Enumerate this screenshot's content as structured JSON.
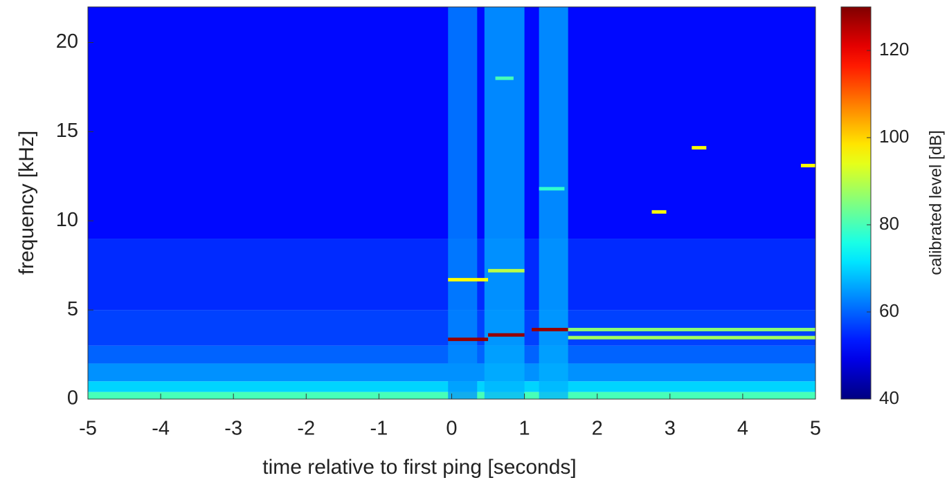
{
  "chart_data": {
    "type": "spectrogram",
    "xlabel": "time relative to first ping [seconds]",
    "ylabel": "frequency [kHz]",
    "colorbar_label": "calibrated level [dB]",
    "xlim": [
      -5,
      5
    ],
    "xticks": [
      -5,
      -4,
      -3,
      -2,
      -1,
      0,
      1,
      2,
      3,
      4,
      5
    ],
    "ylim": [
      0,
      22
    ],
    "yticks": [
      0,
      5,
      10,
      15,
      20
    ],
    "clim": [
      40,
      130
    ],
    "cticks": [
      40,
      60,
      80,
      100,
      120
    ],
    "colormap": "jet",
    "background": {
      "frequencies": [
        0,
        0.4,
        1,
        2,
        3,
        5,
        9,
        22
      ],
      "levels": [
        80,
        70,
        64,
        60,
        57,
        55,
        52
      ]
    },
    "columns": [
      {
        "x0": -0.05,
        "x1": 0.35,
        "level": 64
      },
      {
        "x0": 0.45,
        "x1": 1.0,
        "level": 67
      },
      {
        "x0": 1.2,
        "x1": 1.6,
        "level": 67
      }
    ],
    "tones": [
      {
        "x0": -0.05,
        "x1": 0.5,
        "frequency": 3.35,
        "level": 128
      },
      {
        "x0": 0.5,
        "x1": 1.0,
        "frequency": 3.6,
        "level": 128
      },
      {
        "x0": 1.1,
        "x1": 1.6,
        "frequency": 3.9,
        "level": 128
      },
      {
        "x0": 1.6,
        "x1": 5,
        "frequency": 3.9,
        "level": 86
      },
      {
        "x0": 1.6,
        "x1": 5,
        "frequency": 3.45,
        "level": 88
      },
      {
        "x0": -0.05,
        "x1": 0.5,
        "frequency": 6.7,
        "level": 96
      },
      {
        "x0": 0.5,
        "x1": 1.0,
        "frequency": 7.2,
        "level": 90
      },
      {
        "x0": 0.6,
        "x1": 0.85,
        "frequency": 18,
        "level": 80
      },
      {
        "x0": 1.2,
        "x1": 1.55,
        "frequency": 11.8,
        "level": 78
      },
      {
        "x0": 2.75,
        "x1": 2.95,
        "frequency": 10.5,
        "level": 96
      },
      {
        "x0": 3.3,
        "x1": 3.5,
        "frequency": 14.1,
        "level": 96
      },
      {
        "x0": 4.8,
        "x1": 5,
        "frequency": 13.1,
        "level": 96
      }
    ]
  }
}
